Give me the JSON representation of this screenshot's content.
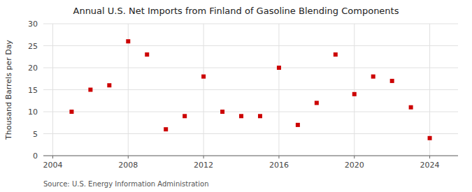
{
  "chart_data": {
    "type": "scatter",
    "title": "Annual U.S. Net Imports from Finland of Gasoline Blending Components",
    "ylabel": "Thousand Barrels per Day",
    "source": "Source: U.S. Energy Information Administration",
    "x": [
      2005,
      2006,
      2007,
      2008,
      2009,
      2010,
      2011,
      2012,
      2013,
      2014,
      2015,
      2016,
      2017,
      2018,
      2019,
      2020,
      2021,
      2022,
      2023,
      2024
    ],
    "values": [
      10,
      15,
      16,
      26,
      23,
      6,
      9,
      18,
      10,
      9,
      9,
      20,
      7,
      12,
      23,
      14,
      18,
      17,
      11,
      4
    ],
    "color": "#cc0000",
    "marker": "square",
    "xlim": [
      2003.5,
      2025.5
    ],
    "ylim": [
      0,
      30
    ],
    "xticks": [
      2004,
      2008,
      2012,
      2016,
      2020,
      2024
    ],
    "yticks": [
      0,
      5,
      10,
      15,
      20,
      25,
      30
    ],
    "grid": true
  }
}
